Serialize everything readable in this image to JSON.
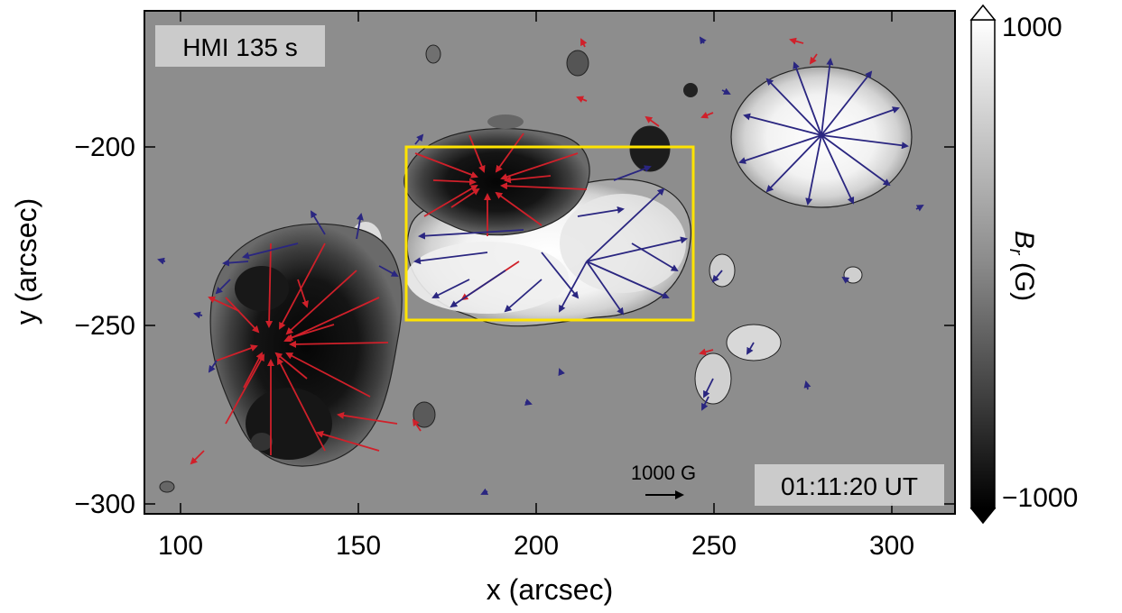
{
  "instrument_label": "HMI 135 s",
  "timestamp": "01:11:20 UT",
  "scale_arrow_label": "1000 G",
  "axes": {
    "x_title": "x (arcsec)",
    "y_title": "y (arcsec)",
    "x_ticks": [
      "100",
      "150",
      "200",
      "250",
      "300"
    ],
    "y_ticks": [
      "-200",
      "-250",
      "-300"
    ],
    "x_range": [
      90,
      315
    ],
    "y_range": [
      -302,
      -163
    ]
  },
  "colorbar": {
    "title": "B_r (G)",
    "max_label": "1000",
    "min_label": "−1000"
  },
  "highlight_box": {
    "x_range": [
      164,
      244
    ],
    "y_range": [
      -248,
      -200
    ],
    "color": "#ffe400"
  },
  "vector_colors": {
    "negative": "#d0202a",
    "positive": "#2a2680"
  }
}
